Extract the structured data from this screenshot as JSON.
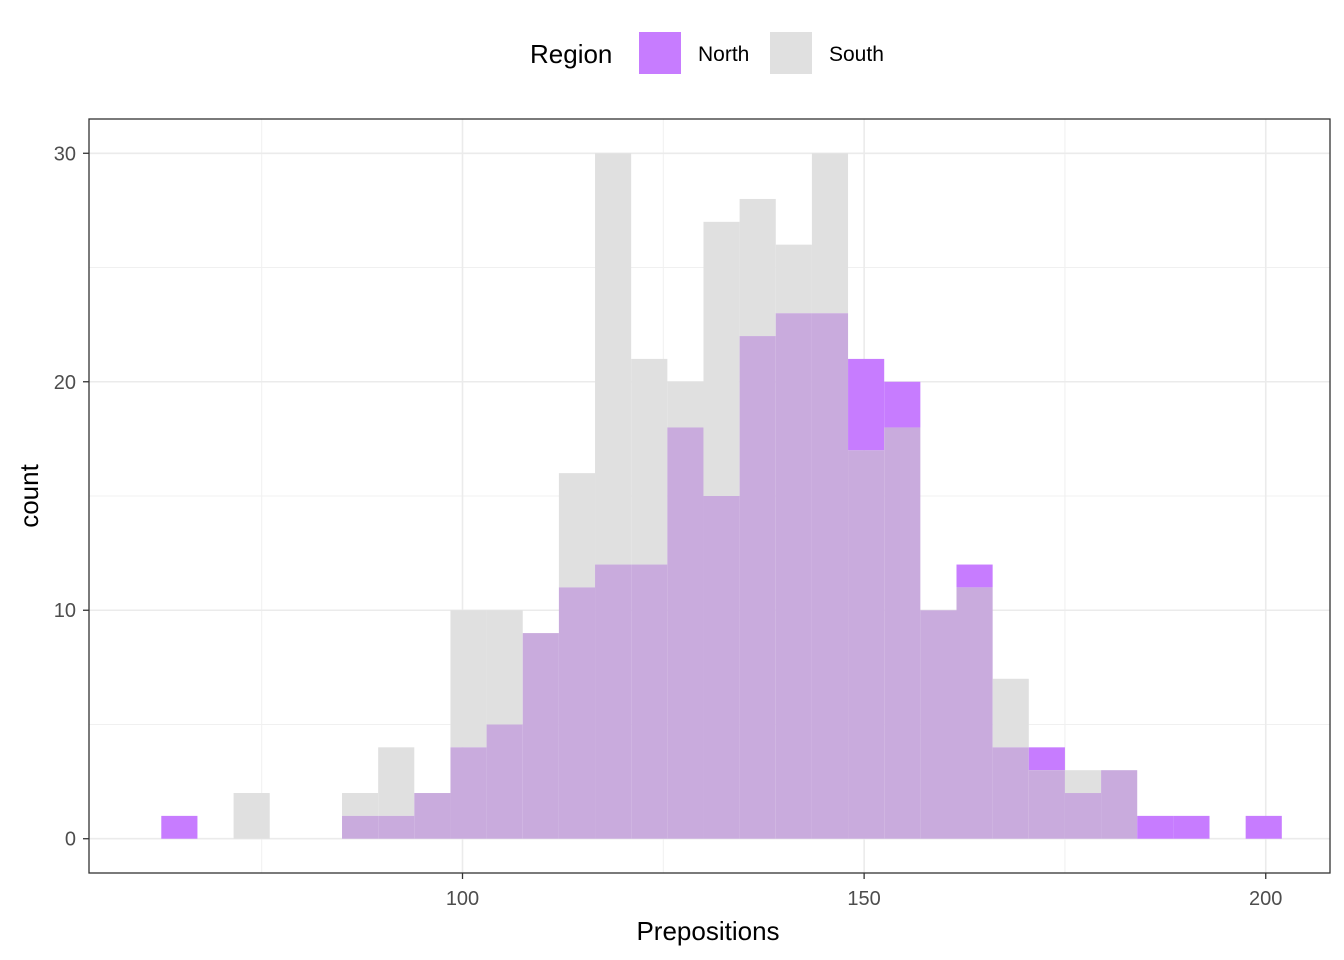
{
  "chart_data": {
    "type": "histogram",
    "xlabel": "Prepositions",
    "ylabel": "count",
    "xlim": [
      53.5,
      208
    ],
    "ylim": [
      -1.5,
      31.5
    ],
    "x_ticks": [
      100,
      150,
      200
    ],
    "y_ticks": [
      0,
      10,
      20,
      30
    ],
    "bin_width": 4.5,
    "bin_start": 62.5,
    "grid": true,
    "legend": {
      "title": "Region",
      "placement": "top",
      "entries": [
        {
          "name": "North",
          "color": "#c77cff"
        },
        {
          "name": "South",
          "color": "#e0e0e0"
        }
      ]
    },
    "overlap_color": "#c9abdd",
    "series": [
      {
        "name": "North",
        "color": "#c77cff",
        "values": [
          1,
          0,
          0,
          0,
          0,
          1,
          1,
          2,
          4,
          5,
          9,
          11,
          12,
          12,
          18,
          15,
          22,
          23,
          23,
          21,
          20,
          10,
          12,
          4,
          4,
          2,
          3,
          1,
          1,
          0,
          1
        ]
      },
      {
        "name": "South",
        "color": "#e0e0e0",
        "values": [
          0,
          0,
          2,
          0,
          0,
          2,
          4,
          2,
          10,
          10,
          9,
          16,
          30,
          21,
          20,
          27,
          28,
          26,
          30,
          17,
          18,
          10,
          11,
          7,
          3,
          3,
          3,
          0,
          0,
          0,
          0
        ]
      }
    ]
  }
}
